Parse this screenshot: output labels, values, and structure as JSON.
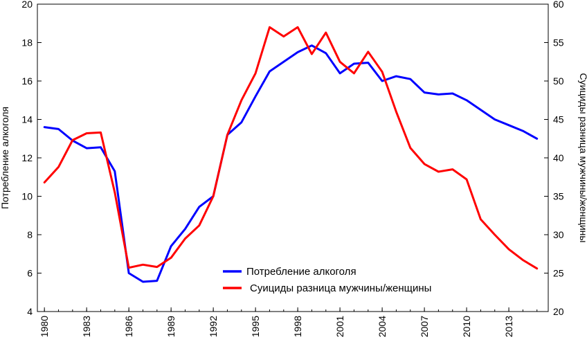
{
  "chart_data": {
    "type": "line",
    "title": "",
    "xlabel": "",
    "ylabel": "Потребление алкоголя",
    "y2label": "Суициды разница мужчины/женщины",
    "ylim": [
      4,
      20
    ],
    "y2lim": [
      20,
      60
    ],
    "xlim": [
      1979.5,
      2015.8
    ],
    "grid": false,
    "legend_position": "bottom-center",
    "x_ticks": [
      "1980",
      "1983",
      "1986",
      "1989",
      "1992",
      "1995",
      "1998",
      "2001",
      "2004",
      "2007",
      "2010",
      "2013"
    ],
    "y_ticks": [
      "4",
      "6",
      "8",
      "10",
      "12",
      "14",
      "16",
      "18",
      "20"
    ],
    "y2_ticks": [
      "20",
      "25",
      "30",
      "35",
      "40",
      "45",
      "50",
      "55",
      "60"
    ],
    "x": [
      1980,
      1981,
      1982,
      1983,
      1984,
      1985,
      1986,
      1987,
      1988,
      1989,
      1990,
      1991,
      1992,
      1993,
      1994,
      1995,
      1996,
      1997,
      1998,
      1999,
      2000,
      2001,
      2002,
      2003,
      2004,
      2005,
      2006,
      2007,
      2008,
      2009,
      2010,
      2011,
      2012,
      2013,
      2014,
      2015
    ],
    "series": [
      {
        "name": "Потребление алкоголя",
        "axis": "left",
        "color": "#0000ff",
        "values": [
          13.6,
          13.5,
          12.9,
          12.5,
          12.55,
          11.3,
          6.0,
          5.55,
          5.6,
          7.4,
          8.3,
          9.45,
          10.0,
          13.2,
          13.85,
          15.2,
          16.5,
          17.0,
          17.5,
          17.85,
          17.45,
          16.4,
          16.9,
          16.95,
          16.0,
          16.25,
          16.1,
          15.4,
          15.3,
          15.35,
          15.0,
          14.5,
          14.0,
          13.7,
          13.4,
          13.0
        ]
      },
      {
        "name": "Суициды разница мужчины/женщины",
        "axis": "right",
        "color": "#ff0000",
        "values": [
          36.8,
          38.8,
          42.3,
          43.2,
          43.3,
          35.5,
          25.7,
          26.1,
          25.8,
          27.0,
          29.5,
          31.2,
          35.0,
          43.0,
          47.5,
          51.0,
          57.0,
          55.8,
          57.0,
          53.5,
          56.3,
          52.5,
          51.0,
          53.8,
          51.2,
          46.0,
          41.3,
          39.2,
          38.2,
          38.5,
          37.2,
          32.0,
          30.0,
          28.1,
          26.7,
          25.6
        ]
      }
    ]
  }
}
